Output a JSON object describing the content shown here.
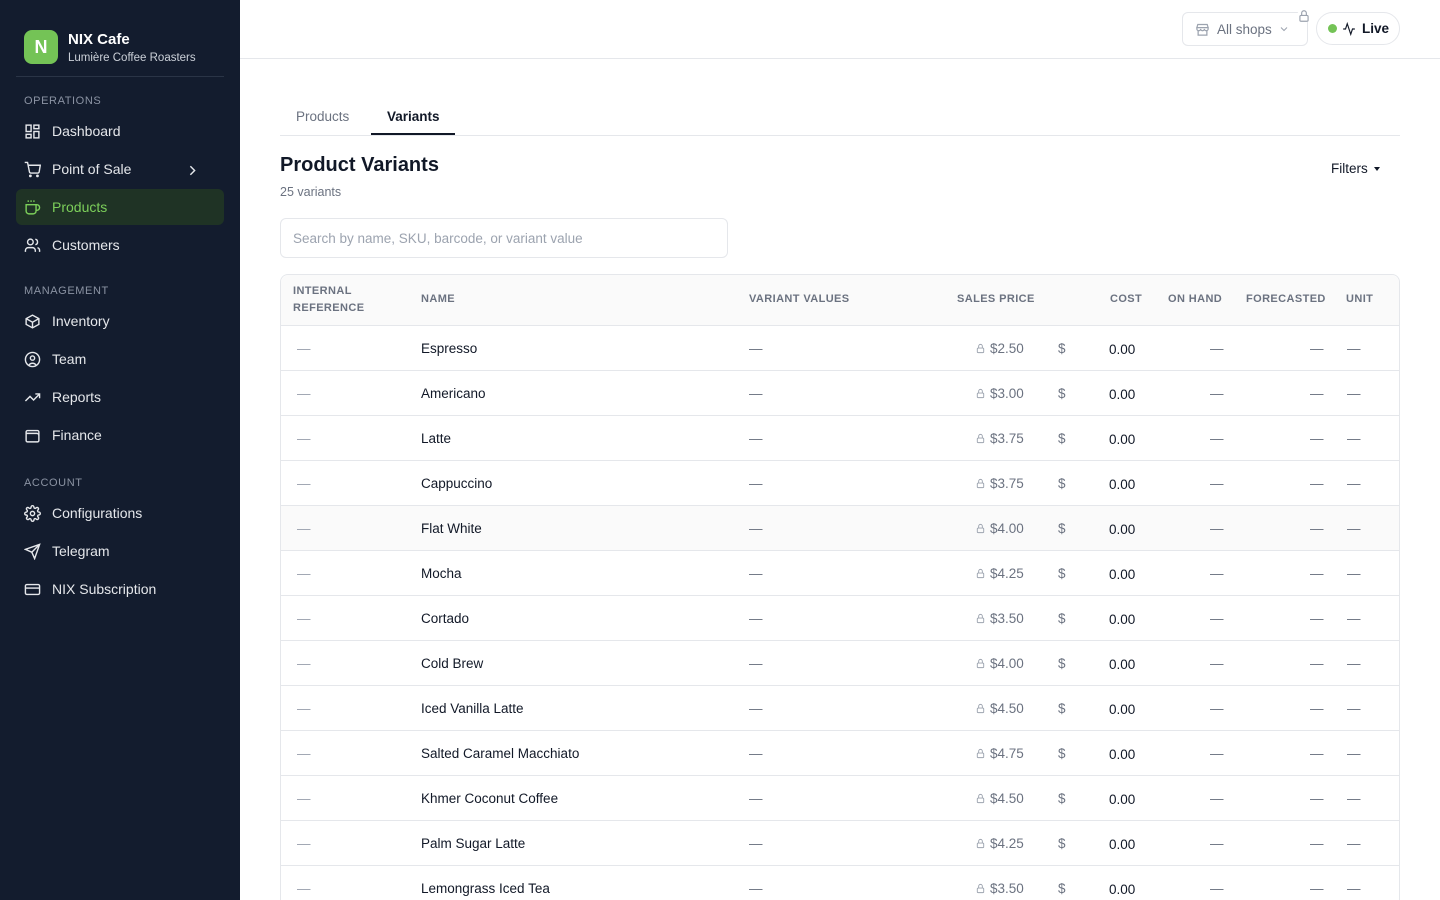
{
  "brand": {
    "logo_letter": "N",
    "name": "NIX Cafe",
    "subtitle": "Lumière Coffee Roasters"
  },
  "sidebar": {
    "sections": [
      {
        "label": "OPERATIONS",
        "items": [
          {
            "label": "Dashboard",
            "icon": "dashboard-icon"
          },
          {
            "label": "Point of Sale",
            "icon": "cart-icon"
          },
          {
            "label": "Products",
            "icon": "coffee-cup-icon",
            "active": true
          },
          {
            "label": "Customers",
            "icon": "users-icon"
          }
        ]
      },
      {
        "label": "MANAGEMENT",
        "items": [
          {
            "label": "Inventory",
            "icon": "box-icon"
          },
          {
            "label": "Team",
            "icon": "user-circle-icon"
          },
          {
            "label": "Reports",
            "icon": "trend-icon"
          },
          {
            "label": "Finance",
            "icon": "wallet-icon"
          }
        ]
      },
      {
        "label": "ACCOUNT",
        "items": [
          {
            "label": "Configurations",
            "icon": "gear-icon"
          },
          {
            "label": "Telegram",
            "icon": "send-icon"
          },
          {
            "label": "NIX Subscription",
            "icon": "card-icon"
          }
        ]
      }
    ]
  },
  "header": {
    "shops_label": "All shops",
    "live_label": "Live"
  },
  "tabs": [
    {
      "label": "Products"
    },
    {
      "label": "Variants",
      "active": true
    }
  ],
  "page": {
    "title": "Product Variants",
    "count": "25 variants",
    "filters_label": "Filters"
  },
  "search": {
    "placeholder": "Search by name, SKU, barcode, or variant value",
    "value": ""
  },
  "table": {
    "headers": {
      "internal_ref_1": "INTERNAL",
      "internal_ref_2": "REFERENCE",
      "name": "NAME",
      "variant_values": "VARIANT VALUES",
      "sales_price": "SALES PRICE",
      "cost": "COST",
      "on_hand": "ON HAND",
      "forecasted": "FORECASTED",
      "unit": "UNIT"
    },
    "empty": "—",
    "currency": "$",
    "rows": [
      {
        "name": "Espresso",
        "price": "$2.50",
        "cost": "0.00"
      },
      {
        "name": "Americano",
        "price": "$3.00",
        "cost": "0.00"
      },
      {
        "name": "Latte",
        "price": "$3.75",
        "cost": "0.00"
      },
      {
        "name": "Cappuccino",
        "price": "$3.75",
        "cost": "0.00"
      },
      {
        "name": "Flat White",
        "price": "$4.00",
        "cost": "0.00"
      },
      {
        "name": "Mocha",
        "price": "$4.25",
        "cost": "0.00"
      },
      {
        "name": "Cortado",
        "price": "$3.50",
        "cost": "0.00"
      },
      {
        "name": "Cold Brew",
        "price": "$4.00",
        "cost": "0.00"
      },
      {
        "name": "Iced Vanilla Latte",
        "price": "$4.50",
        "cost": "0.00"
      },
      {
        "name": "Salted Caramel Macchiato",
        "price": "$4.75",
        "cost": "0.00"
      },
      {
        "name": "Khmer Coconut Coffee",
        "price": "$4.50",
        "cost": "0.00"
      },
      {
        "name": "Palm Sugar Latte",
        "price": "$4.25",
        "cost": "0.00"
      },
      {
        "name": "Lemongrass Iced Tea",
        "price": "$3.50",
        "cost": "0.00"
      }
    ]
  },
  "colors": {
    "sidebar_bg": "#131c2e",
    "accent": "#74c356",
    "active_bg": "#1f3325"
  }
}
